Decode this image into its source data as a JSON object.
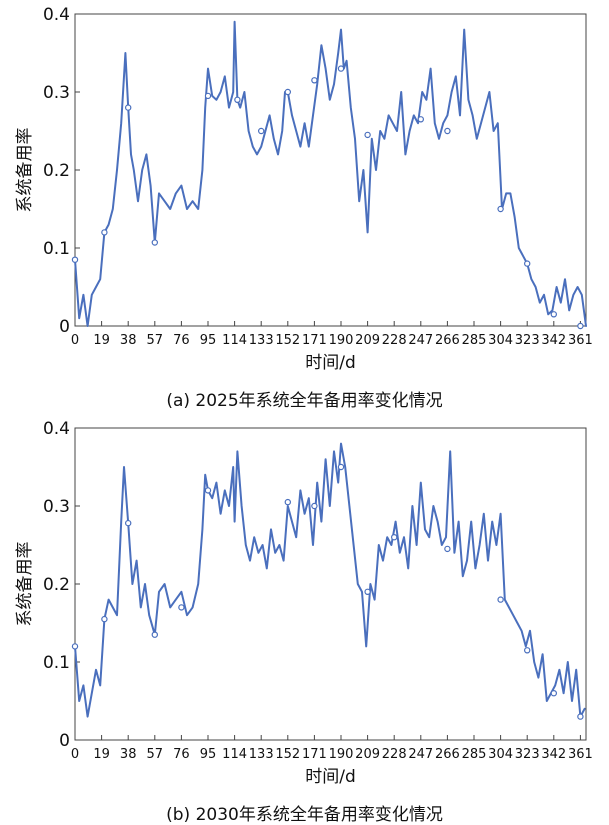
{
  "chart_data": [
    {
      "type": "line",
      "caption": "(a) 2025年系统全年备用率变化情况",
      "xlabel": "时间/d",
      "ylabel": "系统备用率",
      "xlim": [
        0,
        365
      ],
      "ylim": [
        0,
        0.4
      ],
      "xticks": [
        0,
        19,
        38,
        57,
        76,
        95,
        114,
        133,
        152,
        171,
        190,
        209,
        228,
        247,
        266,
        285,
        304,
        323,
        342,
        361
      ],
      "yticks": [
        0,
        0.1,
        0.2,
        0.3,
        0.4
      ],
      "ytick_labels": [
        "0",
        "0.1",
        "0.2",
        "0.3",
        "0.4"
      ],
      "grid": false,
      "series_color": "#4a6fbd",
      "x": [
        0,
        3,
        6,
        9,
        12,
        15,
        18,
        21,
        24,
        27,
        30,
        33,
        36,
        38,
        40,
        42,
        45,
        48,
        51,
        54,
        57,
        60,
        64,
        68,
        72,
        76,
        80,
        84,
        88,
        91,
        93,
        95,
        98,
        101,
        104,
        107,
        110,
        113,
        114,
        116,
        118,
        121,
        124,
        127,
        130,
        133,
        136,
        139,
        142,
        145,
        148,
        150,
        152,
        155,
        158,
        161,
        164,
        167,
        170,
        173,
        176,
        179,
        182,
        185,
        188,
        190,
        192,
        194,
        197,
        200,
        203,
        206,
        209,
        212,
        215,
        218,
        221,
        224,
        227,
        230,
        233,
        236,
        239,
        242,
        245,
        248,
        251,
        254,
        257,
        260,
        263,
        266,
        269,
        272,
        275,
        278,
        281,
        284,
        287,
        290,
        293,
        296,
        299,
        302,
        305,
        308,
        311,
        314,
        317,
        320,
        323,
        326,
        329,
        332,
        335,
        338,
        341,
        344,
        347,
        350,
        353,
        356,
        359,
        362,
        365
      ],
      "values": [
        0.085,
        0.01,
        0.04,
        0.0,
        0.04,
        0.05,
        0.06,
        0.12,
        0.13,
        0.15,
        0.2,
        0.26,
        0.35,
        0.28,
        0.22,
        0.2,
        0.16,
        0.2,
        0.22,
        0.18,
        0.107,
        0.17,
        0.16,
        0.15,
        0.17,
        0.18,
        0.15,
        0.16,
        0.15,
        0.2,
        0.28,
        0.33,
        0.295,
        0.29,
        0.3,
        0.32,
        0.28,
        0.3,
        0.39,
        0.29,
        0.28,
        0.3,
        0.25,
        0.23,
        0.22,
        0.23,
        0.25,
        0.27,
        0.24,
        0.22,
        0.25,
        0.3,
        0.3,
        0.27,
        0.25,
        0.23,
        0.26,
        0.23,
        0.27,
        0.31,
        0.36,
        0.33,
        0.29,
        0.31,
        0.35,
        0.38,
        0.33,
        0.34,
        0.28,
        0.24,
        0.16,
        0.2,
        0.12,
        0.24,
        0.2,
        0.25,
        0.24,
        0.27,
        0.26,
        0.25,
        0.3,
        0.22,
        0.25,
        0.27,
        0.26,
        0.3,
        0.29,
        0.33,
        0.26,
        0.24,
        0.26,
        0.27,
        0.3,
        0.32,
        0.27,
        0.38,
        0.29,
        0.27,
        0.24,
        0.26,
        0.28,
        0.3,
        0.25,
        0.26,
        0.15,
        0.17,
        0.17,
        0.14,
        0.1,
        0.09,
        0.08,
        0.06,
        0.05,
        0.03,
        0.04,
        0.015,
        0.02,
        0.05,
        0.03,
        0.06,
        0.02,
        0.04,
        0.05,
        0.04,
        0.0
      ],
      "markers_x": [
        0,
        21,
        38,
        57,
        95,
        116,
        133,
        152,
        171,
        190,
        209,
        247,
        266,
        304,
        323,
        342,
        361
      ],
      "markers_y": [
        0.085,
        0.12,
        0.28,
        0.107,
        0.295,
        0.29,
        0.25,
        0.3,
        0.315,
        0.33,
        0.245,
        0.265,
        0.25,
        0.15,
        0.08,
        0.015,
        0.0
      ]
    },
    {
      "type": "line",
      "caption": "(b) 2030年系统全年备用率变化情况",
      "xlabel": "时间/d",
      "ylabel": "系统备用率",
      "xlim": [
        0,
        365
      ],
      "ylim": [
        0,
        0.4
      ],
      "xticks": [
        0,
        19,
        38,
        57,
        76,
        95,
        114,
        133,
        152,
        171,
        190,
        209,
        228,
        247,
        266,
        285,
        304,
        323,
        342,
        361
      ],
      "yticks": [
        0,
        0.1,
        0.2,
        0.3,
        0.4
      ],
      "ytick_labels": [
        "0",
        "0.1",
        "0.2",
        "0.3",
        "0.4"
      ],
      "grid": false,
      "series_color": "#4a6fbd",
      "x": [
        0,
        3,
        6,
        9,
        12,
        15,
        18,
        21,
        24,
        27,
        30,
        33,
        35,
        38,
        41,
        44,
        47,
        50,
        53,
        57,
        60,
        64,
        68,
        72,
        76,
        80,
        84,
        88,
        91,
        93,
        95,
        98,
        101,
        104,
        107,
        110,
        113,
        114,
        116,
        119,
        122,
        125,
        128,
        131,
        134,
        137,
        140,
        143,
        146,
        149,
        152,
        155,
        158,
        161,
        164,
        167,
        170,
        173,
        176,
        179,
        182,
        185,
        188,
        190,
        193,
        196,
        199,
        202,
        205,
        208,
        211,
        214,
        217,
        220,
        223,
        226,
        229,
        232,
        235,
        238,
        241,
        244,
        247,
        250,
        253,
        256,
        259,
        262,
        265,
        268,
        271,
        274,
        277,
        280,
        283,
        286,
        289,
        292,
        295,
        298,
        301,
        304,
        307,
        310,
        313,
        316,
        319,
        322,
        325,
        328,
        331,
        334,
        337,
        340,
        343,
        346,
        349,
        352,
        355,
        358,
        361,
        364
      ],
      "values": [
        0.12,
        0.05,
        0.07,
        0.03,
        0.06,
        0.09,
        0.07,
        0.155,
        0.18,
        0.17,
        0.16,
        0.28,
        0.35,
        0.278,
        0.2,
        0.23,
        0.17,
        0.2,
        0.16,
        0.135,
        0.19,
        0.2,
        0.17,
        0.18,
        0.19,
        0.16,
        0.17,
        0.2,
        0.27,
        0.34,
        0.32,
        0.31,
        0.33,
        0.29,
        0.32,
        0.3,
        0.35,
        0.28,
        0.37,
        0.3,
        0.25,
        0.23,
        0.26,
        0.24,
        0.25,
        0.22,
        0.27,
        0.24,
        0.25,
        0.23,
        0.3,
        0.28,
        0.26,
        0.32,
        0.29,
        0.31,
        0.25,
        0.33,
        0.28,
        0.36,
        0.3,
        0.37,
        0.33,
        0.38,
        0.35,
        0.3,
        0.25,
        0.2,
        0.19,
        0.12,
        0.2,
        0.18,
        0.25,
        0.23,
        0.26,
        0.25,
        0.28,
        0.24,
        0.26,
        0.22,
        0.3,
        0.25,
        0.33,
        0.27,
        0.26,
        0.3,
        0.28,
        0.25,
        0.26,
        0.37,
        0.24,
        0.28,
        0.21,
        0.23,
        0.28,
        0.22,
        0.25,
        0.29,
        0.23,
        0.28,
        0.25,
        0.29,
        0.18,
        0.17,
        0.16,
        0.15,
        0.14,
        0.12,
        0.14,
        0.1,
        0.08,
        0.11,
        0.05,
        0.06,
        0.07,
        0.09,
        0.06,
        0.1,
        0.05,
        0.09,
        0.03,
        0.04
      ],
      "markers_x": [
        0,
        21,
        38,
        57,
        76,
        95,
        152,
        171,
        190,
        209,
        228,
        266,
        304,
        323,
        342,
        361
      ],
      "markers_y": [
        0.12,
        0.155,
        0.278,
        0.135,
        0.17,
        0.32,
        0.305,
        0.3,
        0.35,
        0.19,
        0.26,
        0.245,
        0.18,
        0.115,
        0.06,
        0.03
      ]
    }
  ]
}
